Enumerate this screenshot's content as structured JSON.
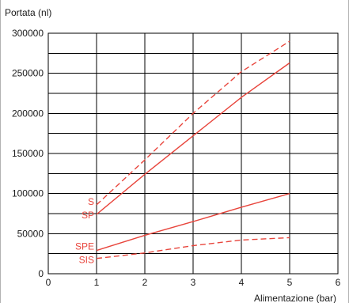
{
  "chart_data": {
    "type": "line",
    "title": "",
    "ylabel": "Portata (nl)",
    "xlabel": "Alimentazione (bar)",
    "xlim": [
      0,
      6
    ],
    "ylim": [
      0,
      300000
    ],
    "xticks": [
      "0",
      "1",
      "2",
      "3",
      "4",
      "5",
      "6"
    ],
    "yticks": [
      "0",
      "50000",
      "100000",
      "150000",
      "200000",
      "250000",
      "300000"
    ],
    "grid": true,
    "series_color": "#e8453c",
    "series": [
      {
        "name": "S",
        "dash": true,
        "x": [
          1,
          2,
          3,
          4,
          5
        ],
        "y": [
          86000,
          142000,
          200000,
          252000,
          290000
        ]
      },
      {
        "name": "SP",
        "dash": false,
        "x": [
          1,
          2,
          3,
          4,
          5
        ],
        "y": [
          74000,
          124000,
          172000,
          220000,
          263000
        ]
      },
      {
        "name": "SPE",
        "dash": false,
        "x": [
          1,
          2,
          3,
          4,
          5
        ],
        "y": [
          29000,
          48000,
          65000,
          83000,
          100000
        ]
      },
      {
        "name": "SIS",
        "dash": true,
        "x": [
          1,
          2,
          3,
          4,
          5
        ],
        "y": [
          19000,
          26000,
          35000,
          42000,
          45000
        ]
      }
    ]
  }
}
